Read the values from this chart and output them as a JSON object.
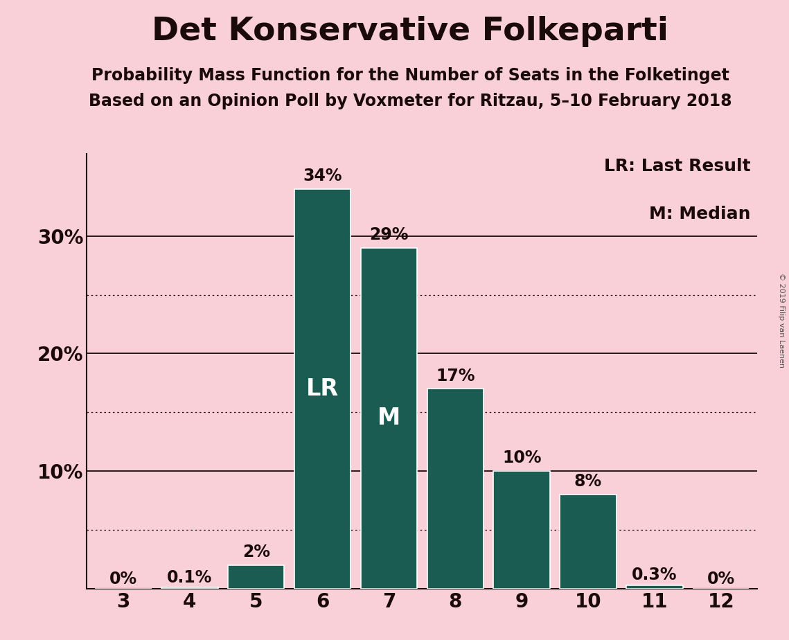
{
  "title": "Det Konservative Folkeparti",
  "subtitle1": "Probability Mass Function for the Number of Seats in the Folketinget",
  "subtitle2": "Based on an Opinion Poll by Voxmeter for Ritzau, 5–10 February 2018",
  "watermark": "© 2019 Filip van Laenen",
  "categories": [
    3,
    4,
    5,
    6,
    7,
    8,
    9,
    10,
    11,
    12
  ],
  "values": [
    0.0,
    0.1,
    2.0,
    34.0,
    29.0,
    17.0,
    10.0,
    8.0,
    0.3,
    0.0
  ],
  "labels": [
    "0%",
    "0.1%",
    "2%",
    "34%",
    "29%",
    "17%",
    "10%",
    "8%",
    "0.3%",
    "0%"
  ],
  "bar_color": "#1a5c52",
  "background_color": "#f9d0d8",
  "bar_edge_color": "#ffffff",
  "text_color": "#1a0a0a",
  "lr_bar": 6,
  "median_bar": 7,
  "major_yticks": [
    10,
    20,
    30
  ],
  "major_ytick_labels": [
    "10%",
    "20%",
    "30%"
  ],
  "dotted_yticks": [
    5,
    15,
    25
  ],
  "legend_lr": "LR: Last Result",
  "legend_m": "M: Median",
  "title_fontsize": 34,
  "subtitle_fontsize": 17,
  "axis_fontsize": 20,
  "legend_fontsize": 18,
  "bar_label_fontsize": 17,
  "inner_label_fontsize": 24,
  "ylim": [
    0,
    37
  ],
  "xlim_left": 2.45,
  "xlim_right": 12.55
}
